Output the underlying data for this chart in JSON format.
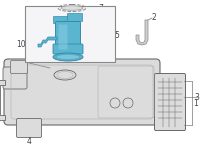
{
  "bg_color": "#ffffff",
  "blue": "#5ab5cf",
  "blue_dark": "#3a8aab",
  "blue_light": "#8ed0e4",
  "gray_line": "#7a7a7a",
  "gray_light": "#c8c8c8",
  "gray_fill": "#e2e2e2",
  "gray_mid": "#b0b0b0",
  "label_color": "#444444",
  "leader_color": "#777777",
  "tank_fill": "#dcdcdc",
  "tank_line": "#686868"
}
